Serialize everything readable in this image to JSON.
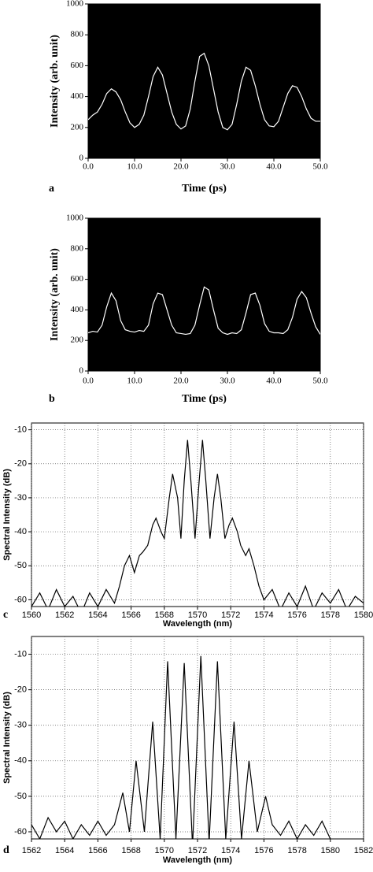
{
  "chart_data": [
    {
      "type": "line",
      "panel": "a",
      "x_label": "Time (ps)",
      "y_label": "Intensity (arb. unit)",
      "background": "#000000",
      "grid": false,
      "xlim": [
        0,
        50
      ],
      "ylim": [
        0,
        1000
      ],
      "xticks": [
        {
          "value": 0,
          "label": "0.0"
        },
        {
          "value": 10,
          "label": "10.0"
        },
        {
          "value": 20,
          "label": "20.0"
        },
        {
          "value": 30,
          "label": "30.0"
        },
        {
          "value": 40,
          "label": "40.0"
        },
        {
          "value": 50,
          "label": "50.0"
        }
      ],
      "yticks": [
        0,
        200,
        400,
        600,
        800,
        1000
      ],
      "x": [
        0,
        1,
        2,
        3,
        4,
        5,
        6,
        7,
        8,
        9,
        10,
        11,
        12,
        13,
        14,
        15,
        16,
        17,
        18,
        19,
        20,
        21,
        22,
        23,
        24,
        25,
        26,
        27,
        28,
        29,
        30,
        31,
        32,
        33,
        34,
        35,
        36,
        37,
        38,
        39,
        40,
        41,
        42,
        43,
        44,
        45,
        46,
        47,
        48,
        49,
        50
      ],
      "series": [
        {
          "color": "#ffffff",
          "values": [
            250,
            280,
            300,
            350,
            420,
            450,
            430,
            380,
            300,
            230,
            200,
            220,
            280,
            400,
            530,
            590,
            540,
            420,
            300,
            220,
            190,
            210,
            320,
            500,
            660,
            680,
            600,
            450,
            300,
            200,
            185,
            220,
            350,
            500,
            590,
            570,
            470,
            350,
            250,
            210,
            205,
            240,
            330,
            420,
            470,
            460,
            400,
            320,
            260,
            240,
            240
          ]
        }
      ]
    },
    {
      "type": "line",
      "panel": "b",
      "x_label": "Time (ps)",
      "y_label": "Intensity (arb. unit)",
      "background": "#000000",
      "grid": false,
      "xlim": [
        0,
        50
      ],
      "ylim": [
        0,
        1000
      ],
      "xticks": [
        {
          "value": 0,
          "label": "0.0"
        },
        {
          "value": 10,
          "label": "10.0"
        },
        {
          "value": 20,
          "label": "20.0"
        },
        {
          "value": 30,
          "label": "30.0"
        },
        {
          "value": 40,
          "label": "40.0"
        },
        {
          "value": 50,
          "label": "50.0"
        }
      ],
      "yticks": [
        0,
        200,
        400,
        600,
        800,
        1000
      ],
      "x": [
        0,
        1,
        2,
        3,
        4,
        5,
        6,
        7,
        8,
        9,
        10,
        11,
        12,
        13,
        14,
        15,
        16,
        17,
        18,
        19,
        20,
        21,
        22,
        23,
        24,
        25,
        26,
        27,
        28,
        29,
        30,
        31,
        32,
        33,
        34,
        35,
        36,
        37,
        38,
        39,
        40,
        41,
        42,
        43,
        44,
        45,
        46,
        47,
        48,
        49,
        50
      ],
      "series": [
        {
          "color": "#ffffff",
          "values": [
            250,
            260,
            255,
            300,
            420,
            510,
            460,
            330,
            270,
            260,
            255,
            265,
            260,
            300,
            440,
            510,
            500,
            400,
            300,
            250,
            245,
            240,
            245,
            300,
            430,
            550,
            530,
            400,
            280,
            250,
            240,
            250,
            245,
            270,
            380,
            500,
            510,
            430,
            310,
            260,
            250,
            250,
            245,
            270,
            350,
            470,
            520,
            480,
            380,
            290,
            240
          ]
        }
      ]
    },
    {
      "type": "line",
      "panel": "c",
      "x_label": "Wavelength (nm)",
      "y_label": "Spectral Intensity (dB)",
      "background": "#ffffff",
      "grid": true,
      "xlim": [
        1560,
        1580
      ],
      "ylim": [
        -62,
        -8
      ],
      "xticks": [
        1560,
        1562,
        1564,
        1566,
        1568,
        1570,
        1572,
        1574,
        1576,
        1578,
        1580
      ],
      "yticks": [
        -60,
        -50,
        -40,
        -30,
        -20,
        -10
      ],
      "x": [
        1560,
        1560.5,
        1561,
        1561.5,
        1562,
        1562.5,
        1563,
        1563.5,
        1564,
        1564.5,
        1565,
        1565.3,
        1565.6,
        1565.9,
        1566.2,
        1566.5,
        1566.7,
        1567,
        1567.3,
        1567.5,
        1567.8,
        1568,
        1568.3,
        1568.5,
        1568.8,
        1569,
        1569.2,
        1569.4,
        1569.6,
        1569.85,
        1570.1,
        1570.3,
        1570.5,
        1570.75,
        1571,
        1571.2,
        1571.4,
        1571.65,
        1571.9,
        1572.1,
        1572.4,
        1572.6,
        1572.9,
        1573.1,
        1573.4,
        1573.7,
        1574,
        1574.5,
        1575,
        1575.5,
        1576,
        1576.5,
        1577,
        1577.5,
        1578,
        1578.5,
        1579,
        1579.5,
        1580
      ],
      "series": [
        {
          "color": "#000000",
          "values": [
            -62,
            -58,
            -63,
            -57,
            -62,
            -59,
            -64,
            -58,
            -62,
            -57,
            -61,
            -56,
            -50,
            -47,
            -52,
            -47,
            -46,
            -44,
            -38,
            -36,
            -40,
            -42,
            -30,
            -23,
            -30,
            -42,
            -25,
            -13,
            -25,
            -42,
            -25,
            -13,
            -25,
            -42,
            -30,
            -23,
            -30,
            -42,
            -38,
            -36,
            -40,
            -44,
            -47,
            -45,
            -50,
            -56,
            -60,
            -57,
            -63,
            -58,
            -62,
            -56,
            -63,
            -58,
            -61,
            -57,
            -63,
            -59,
            -61
          ]
        }
      ]
    },
    {
      "type": "line",
      "panel": "d",
      "x_label": "Wavelength (nm)",
      "y_label": "Spectral Intensity (dB)",
      "background": "#ffffff",
      "grid": true,
      "xlim": [
        1562,
        1582
      ],
      "ylim": [
        -62,
        -5
      ],
      "xticks": [
        1562,
        1564,
        1566,
        1568,
        1570,
        1572,
        1574,
        1576,
        1578,
        1580,
        1582
      ],
      "yticks": [
        -60,
        -50,
        -40,
        -30,
        -20,
        -10
      ],
      "x": [
        1562,
        1562.5,
        1563,
        1563.5,
        1564,
        1564.5,
        1565,
        1565.5,
        1566,
        1566.5,
        1567,
        1567.5,
        1567.9,
        1568.3,
        1568.8,
        1569.3,
        1569.75,
        1570.2,
        1570.7,
        1571.2,
        1571.7,
        1572.2,
        1572.7,
        1573.2,
        1573.7,
        1574.2,
        1574.65,
        1575.1,
        1575.6,
        1576.1,
        1576.5,
        1577,
        1577.5,
        1578,
        1578.5,
        1579,
        1579.5,
        1580
      ],
      "series": [
        {
          "color": "#000000",
          "values": [
            -58,
            -62,
            -56,
            -60,
            -57,
            -62,
            -58,
            -61,
            -57,
            -61,
            -58,
            -49,
            -60,
            -40,
            -60,
            -29,
            -62,
            -12,
            -62,
            -12.5,
            -64,
            -10.5,
            -63,
            -12,
            -62,
            -29,
            -62,
            -40,
            -60,
            -50,
            -58,
            -61,
            -57,
            -62,
            -58,
            -61,
            -57,
            -62
          ]
        }
      ]
    }
  ]
}
